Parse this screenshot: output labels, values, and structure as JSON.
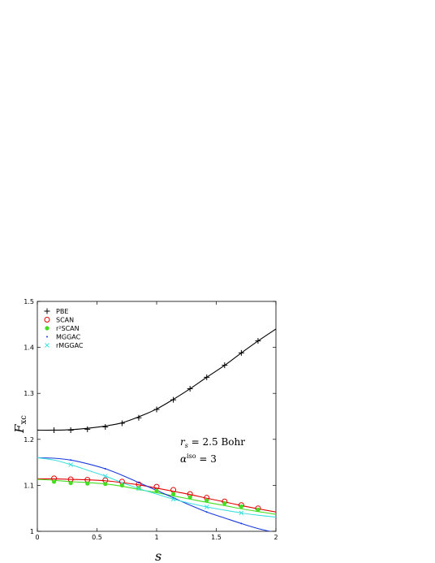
{
  "chart_data": {
    "type": "line",
    "xlabel": "s",
    "ylabel_main": "F",
    "ylabel_sub": "xc",
    "xlim": [
      0,
      2
    ],
    "ylim": [
      1,
      1.5
    ],
    "xticks": [
      "0",
      "0.5",
      "1",
      "1.5",
      "2"
    ],
    "yticks": [
      "1",
      "1.1",
      "1.2",
      "1.3",
      "1.4",
      "1.5"
    ],
    "grid": false,
    "legend_position": "top-left",
    "annotations": [
      {
        "main": "r",
        "sub": "s",
        "rest": " = 2.5 Bohr"
      },
      {
        "main": "α",
        "sup": "iso",
        "rest": " = 3"
      }
    ],
    "series": [
      {
        "name": "PBE",
        "color": "#000000",
        "marker": "+",
        "x": [
          0,
          0.14,
          0.28,
          0.42,
          0.57,
          0.71,
          0.85,
          1.0,
          1.14,
          1.28,
          1.42,
          1.57,
          1.71,
          1.85,
          2.0
        ],
        "y": [
          1.22,
          1.22,
          1.221,
          1.224,
          1.229,
          1.236,
          1.249,
          1.266,
          1.287,
          1.31,
          1.335,
          1.361,
          1.388,
          1.414,
          1.44
        ],
        "mx": [
          0.14,
          0.28,
          0.42,
          0.57,
          0.71,
          0.85,
          1.0,
          1.14,
          1.28,
          1.42,
          1.57,
          1.71,
          1.85
        ],
        "my": [
          1.22,
          1.22,
          1.222,
          1.227,
          1.235,
          1.247,
          1.265,
          1.286,
          1.31,
          1.335,
          1.361,
          1.388,
          1.414
        ]
      },
      {
        "name": "SCAN",
        "color": "#e00000",
        "marker": "o",
        "x": [
          0,
          0.14,
          0.28,
          0.42,
          0.57,
          0.71,
          0.85,
          1.0,
          1.14,
          1.28,
          1.42,
          1.57,
          1.71,
          1.85,
          2.0
        ],
        "y": [
          1.114,
          1.114,
          1.113,
          1.112,
          1.11,
          1.106,
          1.101,
          1.094,
          1.087,
          1.08,
          1.072,
          1.064,
          1.056,
          1.049,
          1.042
        ],
        "mx": [
          0.14,
          0.28,
          0.42,
          0.57,
          0.71,
          0.85,
          1.0,
          1.14,
          1.28,
          1.42,
          1.57,
          1.71,
          1.85
        ],
        "my": [
          1.115,
          1.113,
          1.112,
          1.111,
          1.108,
          1.102,
          1.097,
          1.09,
          1.081,
          1.073,
          1.065,
          1.057,
          1.05
        ]
      },
      {
        "name": "r²SCAN",
        "color": "#44dd22",
        "marker": "*",
        "x": [
          0,
          0.14,
          0.28,
          0.42,
          0.57,
          0.71,
          0.85,
          1.0,
          1.14,
          1.28,
          1.42,
          1.57,
          1.71,
          1.85,
          2.0
        ],
        "y": [
          1.113,
          1.111,
          1.108,
          1.106,
          1.103,
          1.098,
          1.091,
          1.084,
          1.077,
          1.07,
          1.063,
          1.056,
          1.049,
          1.043,
          1.037
        ],
        "mx": [
          0.14,
          0.28,
          0.42,
          0.57,
          0.71,
          0.85,
          1.0,
          1.14,
          1.28,
          1.42,
          1.57,
          1.71,
          1.85
        ],
        "my": [
          1.108,
          1.105,
          1.104,
          1.103,
          1.1,
          1.094,
          1.088,
          1.081,
          1.074,
          1.067,
          1.061,
          1.054,
          1.047
        ]
      },
      {
        "name": "MGGAC",
        "color": "#1a3adb",
        "marker": ".",
        "x": [
          0,
          0.14,
          0.28,
          0.42,
          0.57,
          0.71,
          0.85,
          1.0,
          1.14,
          1.28,
          1.42,
          1.57,
          1.71,
          1.85,
          2.0
        ],
        "y": [
          1.16,
          1.159,
          1.155,
          1.147,
          1.136,
          1.122,
          1.106,
          1.089,
          1.073,
          1.057,
          1.042,
          1.029,
          1.017,
          1.006,
          0.997
        ],
        "mx": [
          0.28,
          0.57,
          0.85,
          1.14,
          1.42,
          1.71
        ],
        "my": [
          1.155,
          1.136,
          1.106,
          1.073,
          1.042,
          1.017
        ]
      },
      {
        "name": "rMGGAC",
        "color": "#40e0e0",
        "marker": "x",
        "x": [
          0,
          0.14,
          0.28,
          0.42,
          0.57,
          0.71,
          0.85,
          1.0,
          1.14,
          1.28,
          1.42,
          1.57,
          1.71,
          1.85,
          2.0
        ],
        "y": [
          1.16,
          1.155,
          1.145,
          1.133,
          1.12,
          1.106,
          1.093,
          1.081,
          1.07,
          1.061,
          1.053,
          1.046,
          1.04,
          1.035,
          1.031
        ],
        "mx": [
          0.28,
          0.57,
          0.85,
          1.14,
          1.42,
          1.71
        ],
        "my": [
          1.145,
          1.12,
          1.093,
          1.07,
          1.053,
          1.04
        ]
      }
    ]
  }
}
